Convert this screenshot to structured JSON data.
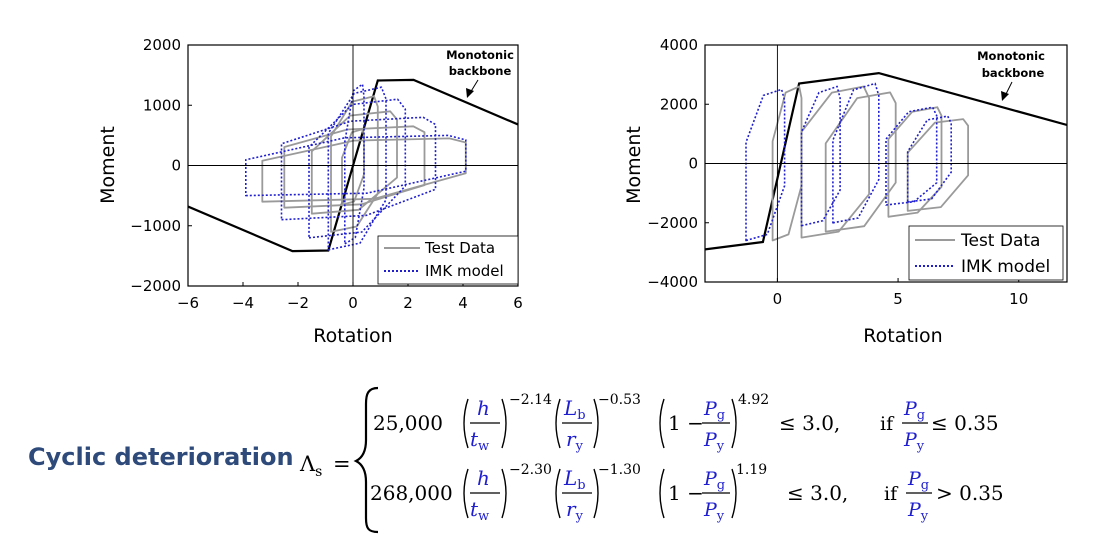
{
  "colors": {
    "test": "#9a9a9a",
    "model": "#1f1fd0",
    "backbone": "#000000",
    "title": "#2d4a7a"
  },
  "chart_data": [
    {
      "type": "line",
      "xlabel": "Rotation",
      "ylabel": "Moment",
      "xlim": [
        -6,
        6
      ],
      "ylim": [
        -2000,
        2000
      ],
      "xticks": [
        "−6",
        "−4",
        "−2",
        "0",
        "2",
        "4",
        "6"
      ],
      "yticks": [
        "2000",
        "1000",
        "0",
        "−1000",
        "−2000"
      ],
      "annotation": [
        "Monotonic",
        "backbone"
      ],
      "legend": {
        "position": "bottom-right",
        "entries": [
          "Test Data",
          "IMK model"
        ]
      },
      "backbone": [
        [
          -6,
          -680
        ],
        [
          -2.2,
          -1420
        ],
        [
          -0.9,
          -1410
        ],
        [
          0.9,
          1410
        ],
        [
          2.2,
          1420
        ],
        [
          6,
          680
        ]
      ],
      "series": [
        {
          "name": "Test Data",
          "style": "solid",
          "loops": [
            {
              "xa": -0.4,
              "xb": 0.4,
              "ya": -650,
              "yb": 600
            },
            {
              "xa": -0.8,
              "xb": 0.9,
              "ya": -1100,
              "yb": 1150
            },
            {
              "xa": -1.5,
              "xb": 1.6,
              "ya": -800,
              "yb": 900
            },
            {
              "xa": -2.5,
              "xb": 2.6,
              "ya": -700,
              "yb": 650
            },
            {
              "xa": -3.3,
              "xb": 4.1,
              "ya": -600,
              "yb": 450
            }
          ]
        },
        {
          "name": "IMK model",
          "style": "dotted",
          "loops": [
            {
              "xa": -0.3,
              "xb": 0.4,
              "ya": -1300,
              "yb": 1350
            },
            {
              "xa": -0.9,
              "xb": 1.2,
              "ya": -1400,
              "yb": 1300
            },
            {
              "xa": -1.6,
              "xb": 1.9,
              "ya": -1200,
              "yb": 1100
            },
            {
              "xa": -2.6,
              "xb": 3.0,
              "ya": -900,
              "yb": 800
            },
            {
              "xa": -3.9,
              "xb": 4.1,
              "ya": -500,
              "yb": 500
            }
          ]
        }
      ]
    },
    {
      "type": "line",
      "xlabel": "Rotation",
      "ylabel": "Moment",
      "xlim": [
        -3,
        12
      ],
      "ylim": [
        -4000,
        4000
      ],
      "xticks": [
        "0",
        "5",
        "10"
      ],
      "yticks": [
        "4000",
        "2000",
        "0",
        "−2000",
        "−4000"
      ],
      "annotation": [
        "Monotonic",
        "backbone"
      ],
      "legend": {
        "position": "bottom-right",
        "entries": [
          "Test Data",
          "IMK model"
        ]
      },
      "backbone": [
        [
          -3,
          -2900
        ],
        [
          -0.6,
          -2650
        ],
        [
          0.9,
          2700
        ],
        [
          4.2,
          3050
        ],
        [
          12,
          1300
        ]
      ],
      "series": [
        {
          "name": "Test Data",
          "style": "solid",
          "loops": [
            {
              "xa": -0.2,
              "xb": 1.0,
              "ya": -2600,
              "yb": 2600
            },
            {
              "xa": 1.0,
              "xb": 3.8,
              "ya": -2500,
              "yb": 2600
            },
            {
              "xa": 2.0,
              "xb": 4.9,
              "ya": -2300,
              "yb": 2400
            },
            {
              "xa": 4.6,
              "xb": 6.8,
              "ya": -1800,
              "yb": 1900
            },
            {
              "xa": 5.4,
              "xb": 7.9,
              "ya": -1600,
              "yb": 1500
            }
          ]
        },
        {
          "name": "IMK model",
          "style": "dotted",
          "loops": [
            {
              "xa": -1.3,
              "xb": 0.3,
              "ya": -2600,
              "yb": 2500
            },
            {
              "xa": 1.0,
              "xb": 2.6,
              "ya": -2100,
              "yb": 2600
            },
            {
              "xa": 2.3,
              "xb": 4.2,
              "ya": -2000,
              "yb": 2700
            },
            {
              "xa": 4.5,
              "xb": 6.6,
              "ya": -1400,
              "yb": 1900
            },
            {
              "xa": 5.4,
              "xb": 7.2,
              "ya": -1300,
              "yb": 1600
            }
          ]
        }
      ]
    }
  ],
  "equation": {
    "title": "Cyclic deterioration",
    "lhs": "Λ",
    "lhs_sub": "s",
    "equals": "=",
    "h": "h",
    "tw": "t",
    "tw_sub": "w",
    "Lb": "L",
    "Lb_sub": "b",
    "ry": "r",
    "ry_sub": "y",
    "Pg": "P",
    "Pg_sub": "g",
    "Py": "P",
    "Py_sub": "y",
    "one_minus": "1 −",
    "row1": {
      "coef": "25,000",
      "e1": "−2.14",
      "e2": "−0.53",
      "e3": "4.92",
      "bound": "≤ 3.0,",
      "cond": "if",
      "cmp": "≤ 0.35"
    },
    "row2": {
      "coef": "268,000",
      "e1": "−2.30",
      "e2": "−1.30",
      "e3": "1.19",
      "bound": "≤ 3.0,",
      "cond": "if",
      "cmp": "> 0.35"
    }
  }
}
